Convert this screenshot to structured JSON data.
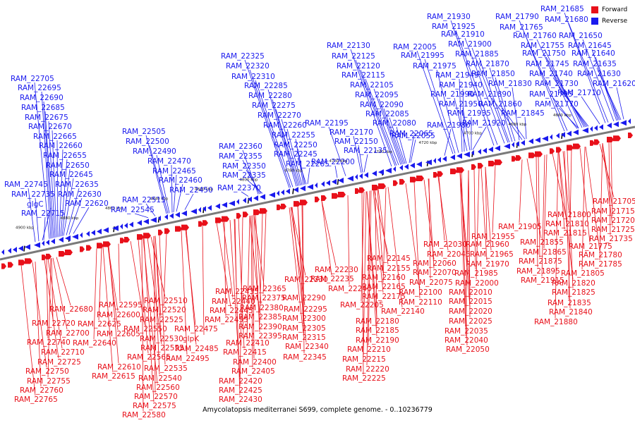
{
  "legend": {
    "items": [
      {
        "label": "Forward",
        "color": "#e8101a"
      },
      {
        "label": "Reverse",
        "color": "#1a1aee"
      }
    ]
  },
  "caption": "Amycolatopsis mediterranei S699, complete genome. - 0..10236779",
  "axis": {
    "ticks": [
      "4900 kbp",
      "4880 kbp",
      "4860 kbp",
      "4840 kbp",
      "4820 kbp",
      "4800 kbp",
      "4780 kbp",
      "4760 kbp",
      "4740 kbp",
      "4720 kbp",
      "4700 kbp",
      "4680 kbp",
      "4660 kbp"
    ]
  },
  "reverse_labels": [
    "RAM_21685",
    "RAM_21680",
    "RAM_21930",
    "RAM_21790",
    "RAM_21765",
    "RAM_21925",
    "RAM_21760",
    "RAM_21650",
    "RAM_21910",
    "RAM_21755",
    "RAM_21645",
    "RAM_22005",
    "RAM_21900",
    "RAM_21750",
    "RAM_21640",
    "RAM_22130",
    "RAM_21995",
    "RAM_21885",
    "RAM_21745",
    "RAM_21635",
    "RAM_22325",
    "RAM_22125",
    "RAM_21975",
    "RAM_21870",
    "RAM_21740",
    "RAM_21630",
    "RAM_22320",
    "RAM_22120",
    "RAM_21945",
    "RAM_21850",
    "RAM_21730",
    "RAM_21620",
    "RAM_22705",
    "RAM_22310",
    "RAM_22115",
    "RAM_21940",
    "RAM_21830",
    "RAM_21710",
    "RAM_22695",
    "RAM_22285",
    "RAM_22105",
    "RAM_21990",
    "RAM_21890",
    "RAM_21795",
    "RAM_22690",
    "RAM_22280",
    "RAM_22095",
    "RAM_21950",
    "RAM_21860",
    "RAM_21770",
    "RAM_22685",
    "RAM_22275",
    "RAM_22090",
    "RAM_21935",
    "RAM_21845",
    "RAM_22675",
    "RAM_22270",
    "RAM_22085",
    "RAM_21920",
    "RAM_22670",
    "RAM_22505",
    "RAM_22260",
    "RAM_22195",
    "RAM_22080",
    "RAM_22665",
    "RAM_22500",
    "RAM_22360",
    "RAM_22255",
    "RAM_22170",
    "RAM_22065",
    "RAM_21980",
    "RAM_22660",
    "RAM_22490",
    "RAM_22355",
    "RAM_22250",
    "RAM_22150",
    "RAM_22055",
    "RAM_22655",
    "RAM_22470",
    "RAM_22350",
    "RAM_22245",
    "RAM_22135",
    "RAM_22650",
    "RAM_22465",
    "RAM_22265",
    "RAM_22200",
    "RAM_22645",
    "RAM_22460",
    "RAM_22335",
    "RAM_22745",
    "RAM_22635",
    "RAM_22450",
    "RAM_22370",
    "RAM_22735",
    "RAM_22630",
    "RAM_22515",
    "glgC",
    "RAM_22620",
    "RAM_22545",
    "RAM_22715"
  ],
  "forward_labels": [
    "RAM_21705",
    "RAM_21715",
    "RAM_21800",
    "RAM_21720",
    "RAM_21905",
    "RAM_21810",
    "RAM_21725",
    "RAM_21815",
    "RAM_21735",
    "RAM_21955",
    "RAM_21855",
    "RAM_21775",
    "RAM_22030",
    "RAM_21960",
    "RAM_21865",
    "RAM_21780",
    "RAM_22045",
    "RAM_21965",
    "RAM_21875",
    "RAM_21785",
    "RAM_22145",
    "RAM_22060",
    "RAM_21970",
    "RAM_21895",
    "RAM_21805",
    "RAM_22230",
    "RAM_22155",
    "RAM_22070",
    "RAM_21985",
    "RAM_21915",
    "RAM_22330",
    "RAM_22235",
    "RAM_22160",
    "RAM_22075",
    "RAM_22000",
    "RAM_21820",
    "RAM_22365",
    "RAM_22290",
    "RAM_22240",
    "RAM_22165",
    "RAM_22100",
    "RAM_22010",
    "RAM_21825",
    "RAM_22435",
    "RAM_22375",
    "RAM_22295",
    "RAM_22175",
    "RAM_22110",
    "RAM_22015",
    "RAM_21835",
    "RAM_22510",
    "RAM_22440",
    "RAM_22380",
    "RAM_22300",
    "RAM_22205",
    "RAM_22140",
    "RAM_22020",
    "RAM_21840",
    "RAM_22595",
    "RAM_22520",
    "RAM_22445",
    "RAM_22385",
    "RAM_22305",
    "RAM_22025",
    "RAM_21880",
    "RAM_22680",
    "RAM_22600",
    "RAM_22525",
    "RAM_22455",
    "RAM_22390",
    "RAM_22315",
    "RAM_22180",
    "RAM_22035",
    "RAM_22720",
    "RAM_22625",
    "RAM_22550",
    "RAM_22475",
    "RAM_22395",
    "RAM_22185",
    "RAM_22040",
    "RAM_22700",
    "RAM_22605",
    "RAM_22530",
    "glpK",
    "RAM_22410",
    "RAM_22340",
    "RAM_22190",
    "RAM_22050",
    "RAM_22740",
    "RAM_22640",
    "RAM_22555",
    "RAM_22485",
    "RAM_22415",
    "RAM_22345",
    "RAM_22210",
    "RAM_22710",
    "RAM_22565",
    "RAM_22495",
    "RAM_22400",
    "RAM_22215",
    "RAM_22725",
    "RAM_22610",
    "RAM_22535",
    "RAM_22405",
    "RAM_22220",
    "RAM_22750",
    "RAM_22615",
    "RAM_22540",
    "RAM_22225",
    "RAM_22755",
    "RAM_22560",
    "RAM_22420",
    "RAM_22760",
    "RAM_22570",
    "RAM_22425",
    "RAM_22765",
    "RAM_22575",
    "RAM_22430",
    "RAM_22580"
  ]
}
